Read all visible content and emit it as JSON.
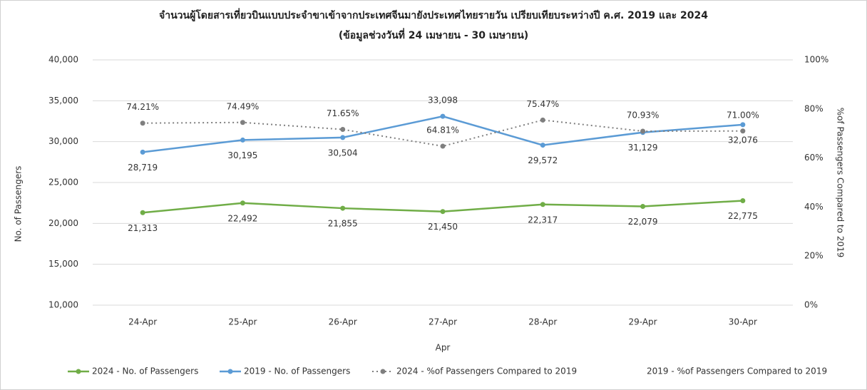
{
  "chart_data": {
    "type": "line",
    "title": "จำนวนผู้โดยสารเที่ยวบินแบบประจำขาเข้าจากประเทศจีนมายังประเทศไทยรายวัน เปรียบเทียบระหว่างปี ค.ศ. 2019 และ 2024",
    "subtitle": "(ข้อมูลช่วงวันที่ 24 เมษายน - 30 เมษายน)",
    "x_label": "Apr",
    "y_label": "No. of Passengers",
    "y2_label": "%of Passengers Compared to 2019",
    "categories": [
      "24-Apr",
      "25-Apr",
      "26-Apr",
      "27-Apr",
      "28-Apr",
      "29-Apr",
      "30-Apr"
    ],
    "ylim": [
      10000,
      40000
    ],
    "yticks": [
      {
        "value": 10000,
        "label": "10,000"
      },
      {
        "value": 15000,
        "label": "15,000"
      },
      {
        "value": 20000,
        "label": "20,000"
      },
      {
        "value": 25000,
        "label": "25,000"
      },
      {
        "value": 30000,
        "label": "30,000"
      },
      {
        "value": 35000,
        "label": "35,000"
      },
      {
        "value": 40000,
        "label": "40,000"
      }
    ],
    "y2lim": [
      0,
      100
    ],
    "y2ticks": [
      {
        "value": 0,
        "label": "0%"
      },
      {
        "value": 20,
        "label": "20%"
      },
      {
        "value": 40,
        "label": "40%"
      },
      {
        "value": 60,
        "label": "60%"
      },
      {
        "value": 80,
        "label": "80%"
      },
      {
        "value": 100,
        "label": "100%"
      }
    ],
    "grid": true,
    "legend": "bottom",
    "series": [
      {
        "name": "2024 - No. of Passengers",
        "color": "#70ad47",
        "values": [
          21313,
          22492,
          21855,
          21450,
          22317,
          22079,
          22775
        ],
        "value_labels": [
          "21,313",
          "22,492",
          "21,855",
          "21,450",
          "22,317",
          "22,079",
          "22,775"
        ]
      },
      {
        "name": "2019 - No. of Passengers",
        "color": "#5b9bd5",
        "values": [
          28719,
          30195,
          30504,
          33098,
          29572,
          31129,
          32076
        ],
        "value_labels": [
          "28,719",
          "30,195",
          "30,504",
          "33,098",
          "29,572",
          "31,129",
          "32,076"
        ]
      },
      {
        "name": "2024 - %of Passengers Compared to 2019",
        "color": "#7f7f7f",
        "axis": "y2",
        "dashed": true,
        "values": [
          74.21,
          74.49,
          71.65,
          64.81,
          75.47,
          70.93,
          71.0
        ],
        "value_labels": [
          "74.21%",
          "74.49%",
          "71.65%",
          "64.81%",
          "75.47%",
          "70.93%",
          "71.00%"
        ]
      },
      {
        "name": "2019 - %of Passengers Compared to 2019",
        "axis": "y2",
        "values": [
          null,
          null,
          null,
          null,
          null,
          null,
          null
        ]
      }
    ]
  }
}
